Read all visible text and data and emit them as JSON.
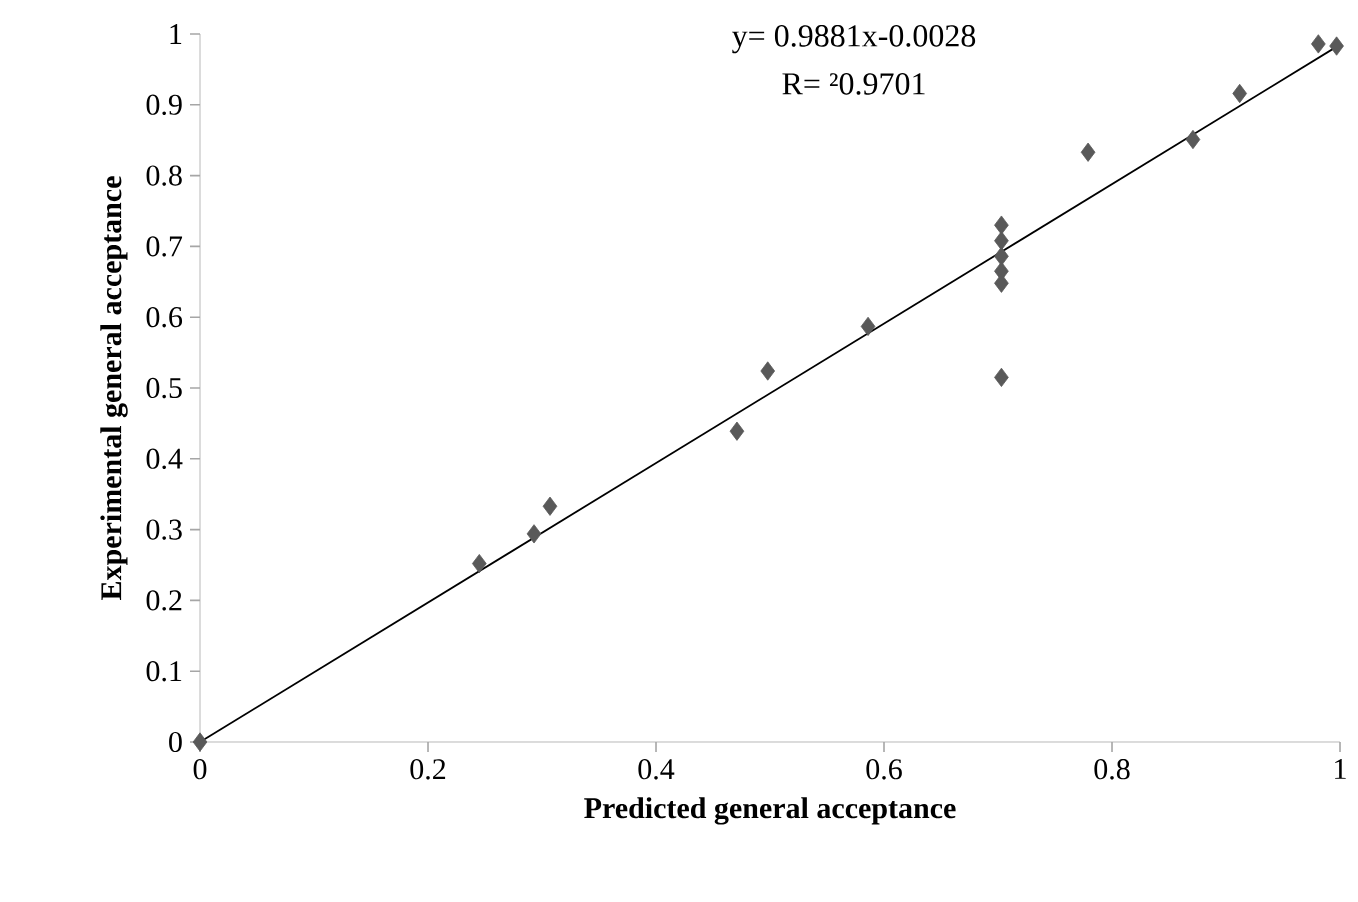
{
  "chart_data": {
    "type": "scatter",
    "xlabel": "Predicted general acceptance",
    "ylabel": "Experimental  general acceptance",
    "xlim": [
      0,
      1
    ],
    "ylim": [
      0,
      1
    ],
    "xticks": [
      0,
      0.2,
      0.4,
      0.6,
      0.8,
      1
    ],
    "yticks": [
      0,
      0.1,
      0.2,
      0.3,
      0.4,
      0.5,
      0.6,
      0.7,
      0.8,
      0.9,
      1
    ],
    "grid": false,
    "annotations": [
      "y= 0.9881x-0.0028",
      "R= ²0.9701"
    ],
    "series": [
      {
        "color": "#595959",
        "marker": "diamond",
        "x": [
          0,
          0.245,
          0.293,
          0.307,
          0.471,
          0.498,
          0.586,
          0.703,
          0.703,
          0.703,
          0.703,
          0.703,
          0.703,
          0.779,
          0.871,
          0.912,
          0.981,
          0.997
        ],
        "values": [
          0,
          0.252,
          0.294,
          0.333,
          0.439,
          0.524,
          0.587,
          0.515,
          0.73,
          0.708,
          0.686,
          0.665,
          0.648,
          0.833,
          0.851,
          0.916,
          0.986,
          0.983
        ]
      },
      {
        "type": "line",
        "color": "#000000",
        "x": [
          0,
          1
        ],
        "values": [
          0,
          0.985
        ]
      }
    ]
  }
}
